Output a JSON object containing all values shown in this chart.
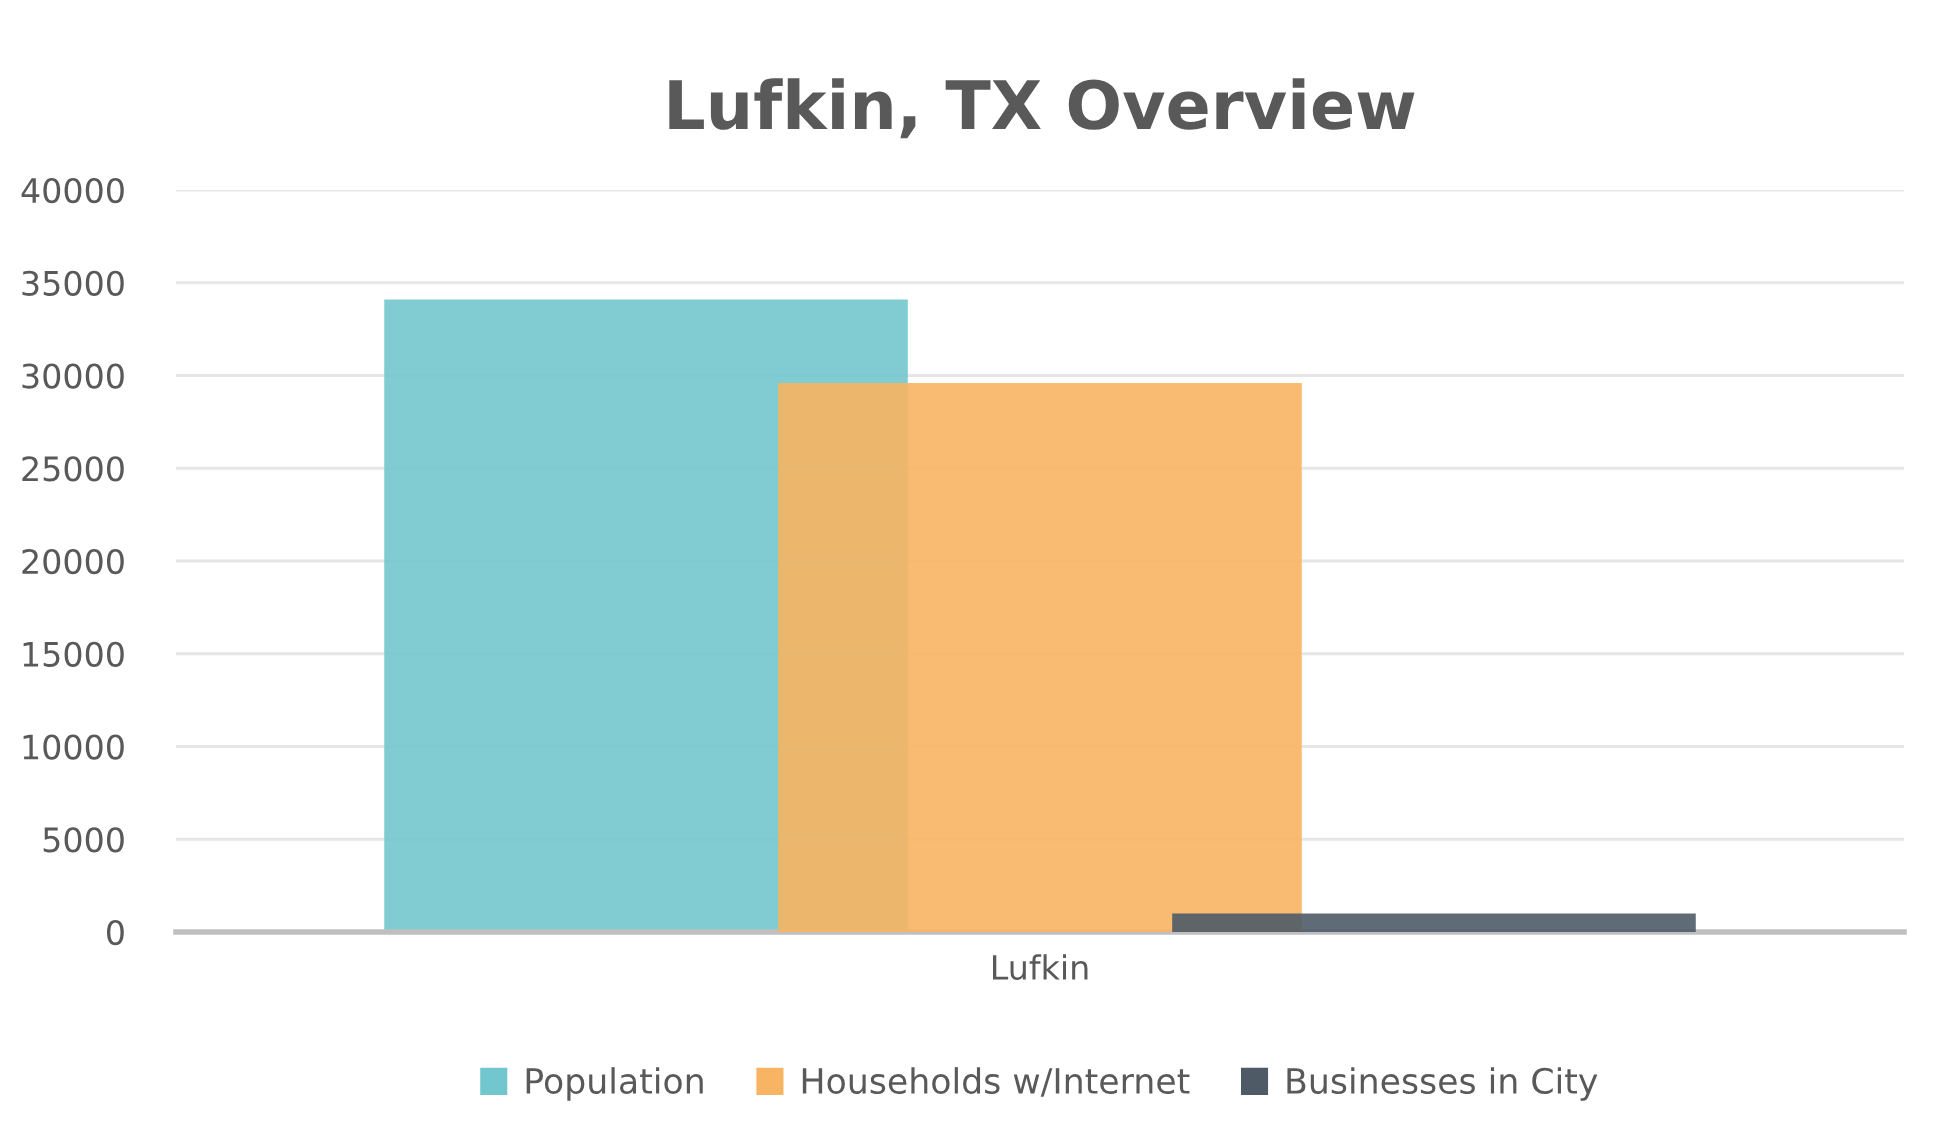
{
  "chart_data": {
    "type": "bar",
    "title": "Lufkin, TX Overview",
    "categories": [
      "Lufkin"
    ],
    "series": [
      {
        "name": "Population",
        "color": "#72c6cd",
        "values": [
          34100
        ]
      },
      {
        "name": "Households w/Internet",
        "color": "#f7b462",
        "values": [
          29600
        ]
      },
      {
        "name": "Businesses in City",
        "color": "#4e5b67",
        "values": [
          1000
        ]
      }
    ],
    "ylim": [
      0,
      40000
    ],
    "yticks": [
      0,
      5000,
      10000,
      15000,
      20000,
      25000,
      30000,
      35000,
      40000
    ],
    "grid": "y",
    "legend": "bottom"
  }
}
